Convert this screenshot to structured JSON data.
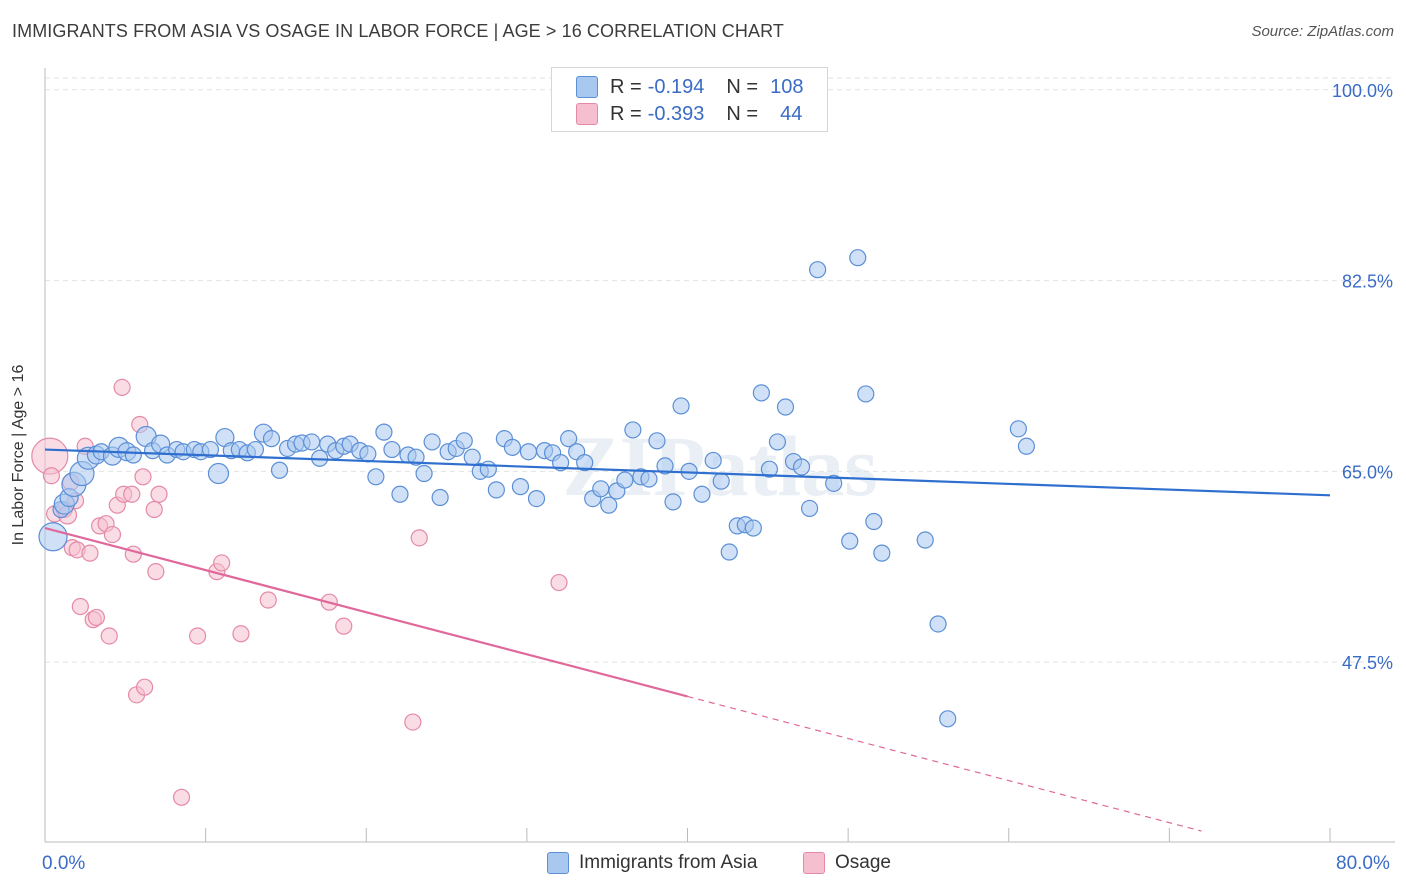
{
  "title": "IMMIGRANTS FROM ASIA VS OSAGE IN LABOR FORCE | AGE > 16 CORRELATION CHART",
  "source": "Source: ZipAtlas.com",
  "watermark": "ZIPatlas",
  "legend": {
    "r_label": "R =",
    "n_label": "N =",
    "rows": [
      {
        "r": "-0.194",
        "n": "108",
        "color": "#a9c8f0"
      },
      {
        "r": "-0.393",
        "n": "44",
        "color": "#f5bfd0"
      }
    ]
  },
  "colors": {
    "blue_fill": "#a9c8f0",
    "blue_stroke": "#5b8fd6",
    "blue_line": "#2e6fcf",
    "pink_fill": "#f5bfd0",
    "pink_stroke": "#e48aa8",
    "pink_line": "#e0689a",
    "tick_text": "#3a6cc6",
    "grid": "#e2e2e2"
  },
  "chart_data": {
    "type": "scatter",
    "title": "IMMIGRANTS FROM ASIA VS OSAGE IN LABOR FORCE | AGE > 16 CORRELATION CHART",
    "xlabel": "",
    "ylabel": "In Labor Force | Age > 16",
    "xlim": [
      0,
      80
    ],
    "ylim": [
      31,
      102
    ],
    "x_tick_labels": [
      "0.0%",
      "80.0%"
    ],
    "y_ticks": [
      47.5,
      65.0,
      82.5,
      100.0
    ],
    "y_tick_labels": [
      "47.5%",
      "65.0%",
      "82.5%",
      "100.0%"
    ],
    "grid": true,
    "legend_position": "top-center and bottom",
    "series": [
      {
        "name": "Immigrants from Asia",
        "r": -0.194,
        "n": 108,
        "trend": {
          "x": [
            0,
            80
          ],
          "y": [
            67.0,
            62.8
          ],
          "dashed_from": null
        },
        "points": [
          [
            0.5,
            59.0,
            14
          ],
          [
            1.0,
            61.5,
            8
          ],
          [
            1.2,
            62.0,
            10
          ],
          [
            1.5,
            62.6,
            9
          ],
          [
            1.8,
            63.8,
            12
          ],
          [
            2.3,
            64.8,
            12
          ],
          [
            2.7,
            66.2,
            11
          ],
          [
            3.2,
            66.5,
            9
          ],
          [
            3.5,
            66.8,
            8
          ],
          [
            4.2,
            66.4,
            9
          ],
          [
            4.6,
            67.2,
            10
          ],
          [
            5.1,
            66.8,
            9
          ],
          [
            5.5,
            66.5,
            8
          ],
          [
            6.3,
            68.2,
            10
          ],
          [
            6.7,
            66.9,
            8
          ],
          [
            7.2,
            67.5,
            9
          ],
          [
            7.6,
            66.5,
            8
          ],
          [
            8.2,
            67.0,
            8
          ],
          [
            8.6,
            66.8,
            8
          ],
          [
            9.3,
            67.0,
            8
          ],
          [
            9.7,
            66.8,
            8
          ],
          [
            10.3,
            67.0,
            8
          ],
          [
            10.8,
            64.8,
            10
          ],
          [
            11.2,
            68.1,
            9
          ],
          [
            11.6,
            66.9,
            8
          ],
          [
            12.1,
            67.0,
            8
          ],
          [
            12.6,
            66.7,
            8
          ],
          [
            13.1,
            67.0,
            8
          ],
          [
            13.6,
            68.5,
            9
          ],
          [
            14.1,
            68.0,
            8
          ],
          [
            14.6,
            65.1,
            8
          ],
          [
            15.1,
            67.1,
            8
          ],
          [
            15.6,
            67.5,
            8
          ],
          [
            16.0,
            67.6,
            8
          ],
          [
            16.6,
            67.7,
            8
          ],
          [
            17.1,
            66.2,
            8
          ],
          [
            17.6,
            67.5,
            8
          ],
          [
            18.1,
            66.9,
            8
          ],
          [
            18.6,
            67.3,
            8
          ],
          [
            19.0,
            67.5,
            8
          ],
          [
            19.6,
            66.9,
            8
          ],
          [
            20.1,
            66.6,
            8
          ],
          [
            20.6,
            64.5,
            8
          ],
          [
            21.1,
            68.6,
            8
          ],
          [
            21.6,
            67.0,
            8
          ],
          [
            22.1,
            62.9,
            8
          ],
          [
            22.6,
            66.5,
            8
          ],
          [
            23.1,
            66.3,
            8
          ],
          [
            23.6,
            64.8,
            8
          ],
          [
            24.1,
            67.7,
            8
          ],
          [
            24.6,
            62.6,
            8
          ],
          [
            25.1,
            66.8,
            8
          ],
          [
            25.6,
            67.1,
            8
          ],
          [
            26.1,
            67.8,
            8
          ],
          [
            26.6,
            66.3,
            8
          ],
          [
            27.1,
            65.0,
            8
          ],
          [
            27.6,
            65.2,
            8
          ],
          [
            28.1,
            63.3,
            8
          ],
          [
            28.6,
            68.0,
            8
          ],
          [
            29.1,
            67.2,
            8
          ],
          [
            29.6,
            63.6,
            8
          ],
          [
            30.1,
            66.8,
            8
          ],
          [
            30.6,
            62.5,
            8
          ],
          [
            31.1,
            66.9,
            8
          ],
          [
            31.6,
            66.7,
            8
          ],
          [
            32.1,
            65.8,
            8
          ],
          [
            32.6,
            68.0,
            8
          ],
          [
            33.1,
            66.8,
            8
          ],
          [
            33.6,
            65.8,
            8
          ],
          [
            34.1,
            62.5,
            8
          ],
          [
            34.6,
            63.4,
            8
          ],
          [
            35.1,
            61.9,
            8
          ],
          [
            35.6,
            63.2,
            8
          ],
          [
            36.1,
            64.2,
            8
          ],
          [
            36.6,
            68.8,
            8
          ],
          [
            37.1,
            64.5,
            8
          ],
          [
            37.6,
            64.3,
            8
          ],
          [
            38.1,
            67.8,
            8
          ],
          [
            38.6,
            65.5,
            8
          ],
          [
            39.1,
            62.2,
            8
          ],
          [
            39.6,
            71.0,
            8
          ],
          [
            40.1,
            65.0,
            8
          ],
          [
            40.9,
            62.9,
            8
          ],
          [
            41.6,
            66.0,
            8
          ],
          [
            42.1,
            64.1,
            8
          ],
          [
            42.6,
            57.6,
            8
          ],
          [
            43.1,
            60.0,
            8
          ],
          [
            43.6,
            60.1,
            8
          ],
          [
            44.1,
            59.8,
            8
          ],
          [
            44.6,
            72.2,
            8
          ],
          [
            45.1,
            65.2,
            8
          ],
          [
            45.6,
            67.7,
            8
          ],
          [
            46.1,
            70.9,
            8
          ],
          [
            46.6,
            65.9,
            8
          ],
          [
            47.1,
            65.4,
            8
          ],
          [
            47.6,
            61.6,
            8
          ],
          [
            48.1,
            83.5,
            8
          ],
          [
            49.1,
            63.9,
            8
          ],
          [
            50.1,
            58.6,
            8
          ],
          [
            50.6,
            84.6,
            8
          ],
          [
            51.1,
            72.1,
            8
          ],
          [
            51.6,
            60.4,
            8
          ],
          [
            52.1,
            57.5,
            8
          ],
          [
            54.8,
            58.7,
            8
          ],
          [
            55.6,
            51.0,
            8
          ],
          [
            56.2,
            42.3,
            8
          ],
          [
            60.6,
            68.9,
            8
          ],
          [
            61.1,
            67.3,
            8
          ]
        ]
      },
      {
        "name": "Osage",
        "r": -0.393,
        "n": 44,
        "trend": {
          "x": [
            0,
            72
          ],
          "y": [
            59.8,
            32.0
          ],
          "dashed_from": 40
        },
        "points": [
          [
            0.3,
            66.4,
            18
          ],
          [
            0.4,
            64.6,
            8
          ],
          [
            0.6,
            61.1,
            8
          ],
          [
            1.2,
            61.5,
            8
          ],
          [
            1.4,
            61.0,
            9
          ],
          [
            1.6,
            64.0,
            8
          ],
          [
            1.7,
            58.0,
            8
          ],
          [
            1.9,
            62.3,
            8
          ],
          [
            2.0,
            57.8,
            8
          ],
          [
            2.2,
            52.6,
            8
          ],
          [
            2.5,
            67.3,
            8
          ],
          [
            2.8,
            57.5,
            8
          ],
          [
            3.0,
            51.4,
            8
          ],
          [
            3.2,
            51.6,
            8
          ],
          [
            3.4,
            60.0,
            8
          ],
          [
            3.8,
            60.2,
            8
          ],
          [
            4.0,
            49.9,
            8
          ],
          [
            4.2,
            59.2,
            8
          ],
          [
            4.5,
            61.9,
            8
          ],
          [
            4.8,
            72.7,
            8
          ],
          [
            4.9,
            62.9,
            8
          ],
          [
            5.4,
            62.9,
            8
          ],
          [
            5.5,
            57.4,
            8
          ],
          [
            5.7,
            44.5,
            8
          ],
          [
            5.9,
            69.3,
            8
          ],
          [
            6.1,
            64.5,
            8
          ],
          [
            6.2,
            45.2,
            8
          ],
          [
            6.8,
            61.5,
            8
          ],
          [
            6.9,
            55.8,
            8
          ],
          [
            7.1,
            62.9,
            8
          ],
          [
            8.5,
            35.1,
            8
          ],
          [
            9.5,
            49.9,
            8
          ],
          [
            10.7,
            55.8,
            8
          ],
          [
            11.0,
            56.6,
            8
          ],
          [
            12.2,
            50.1,
            8
          ],
          [
            13.9,
            53.2,
            8
          ],
          [
            17.7,
            53.0,
            8
          ],
          [
            18.6,
            50.8,
            8
          ],
          [
            22.9,
            42.0,
            8
          ],
          [
            23.3,
            58.9,
            8
          ],
          [
            32.0,
            54.8,
            8
          ]
        ]
      }
    ]
  },
  "bottom_legend": [
    {
      "label": "Immigrants from Asia",
      "color": "#a9c8f0"
    },
    {
      "label": "Osage",
      "color": "#f5bfd0"
    }
  ]
}
